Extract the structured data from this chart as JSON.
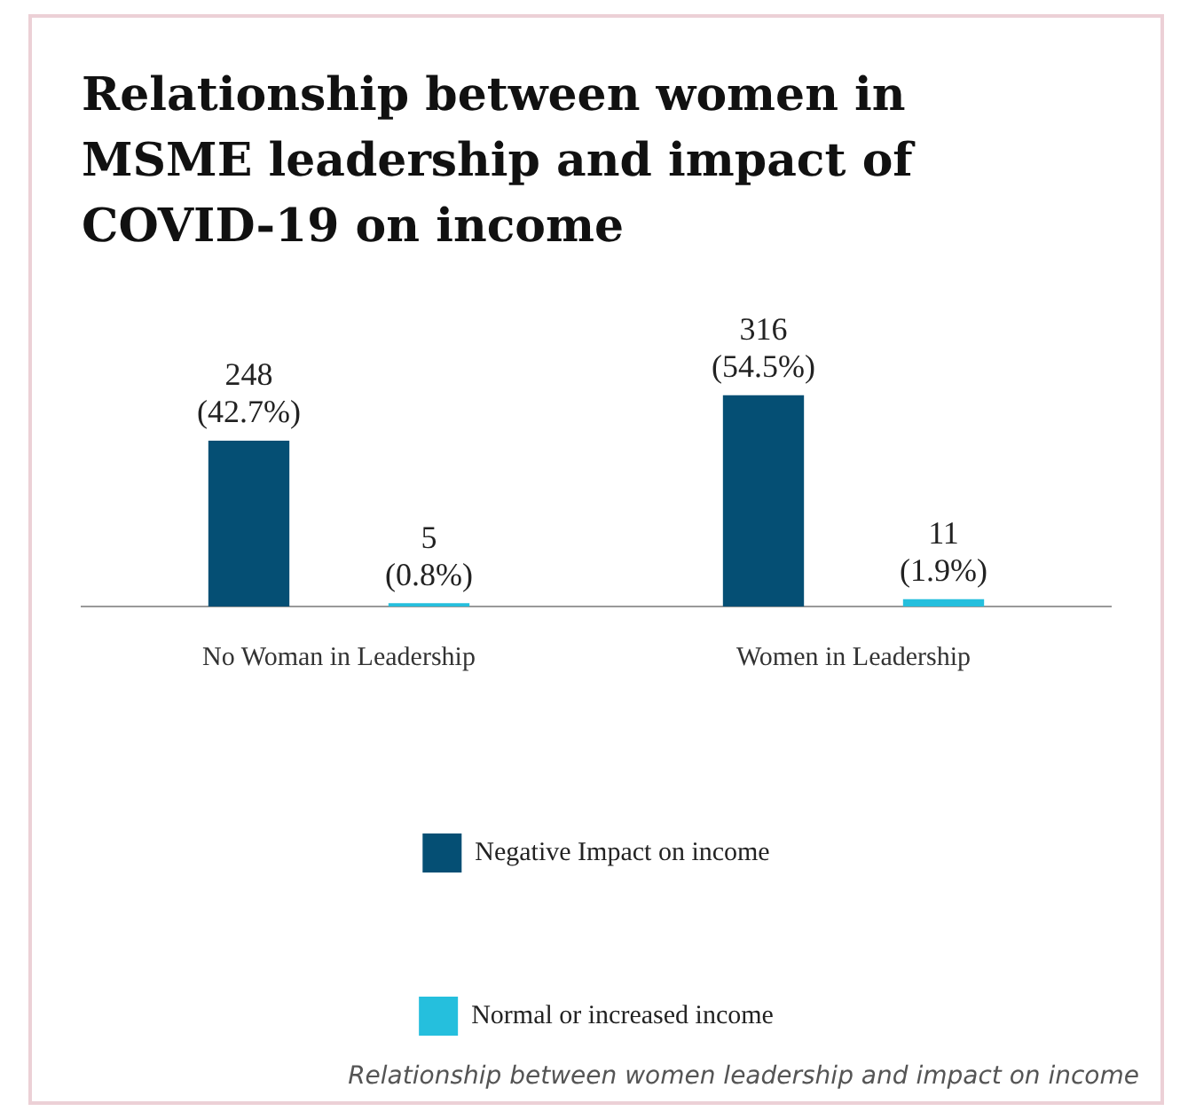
{
  "chart_data": {
    "type": "bar",
    "title": "Relationship between women in MSME leadership and impact of COVID-19 on income",
    "categories": [
      "No Woman in Leadership",
      "Women in Leadership"
    ],
    "series": [
      {
        "name": "Negative Impact on income",
        "color": "#054f74",
        "values": [
          248,
          316
        ],
        "value_labels": [
          "248\n(42.7%)",
          "316\n(54.5%)"
        ]
      },
      {
        "name": "Normal or increased income",
        "color": "#25bfdd",
        "values": [
          5,
          11
        ],
        "value_labels": [
          "5\n(0.8%)",
          "11\n(1.9%)"
        ]
      }
    ],
    "legend": "bottom",
    "grid": false,
    "annotations": [
      "Relationship between women leadership and impact on income"
    ]
  }
}
